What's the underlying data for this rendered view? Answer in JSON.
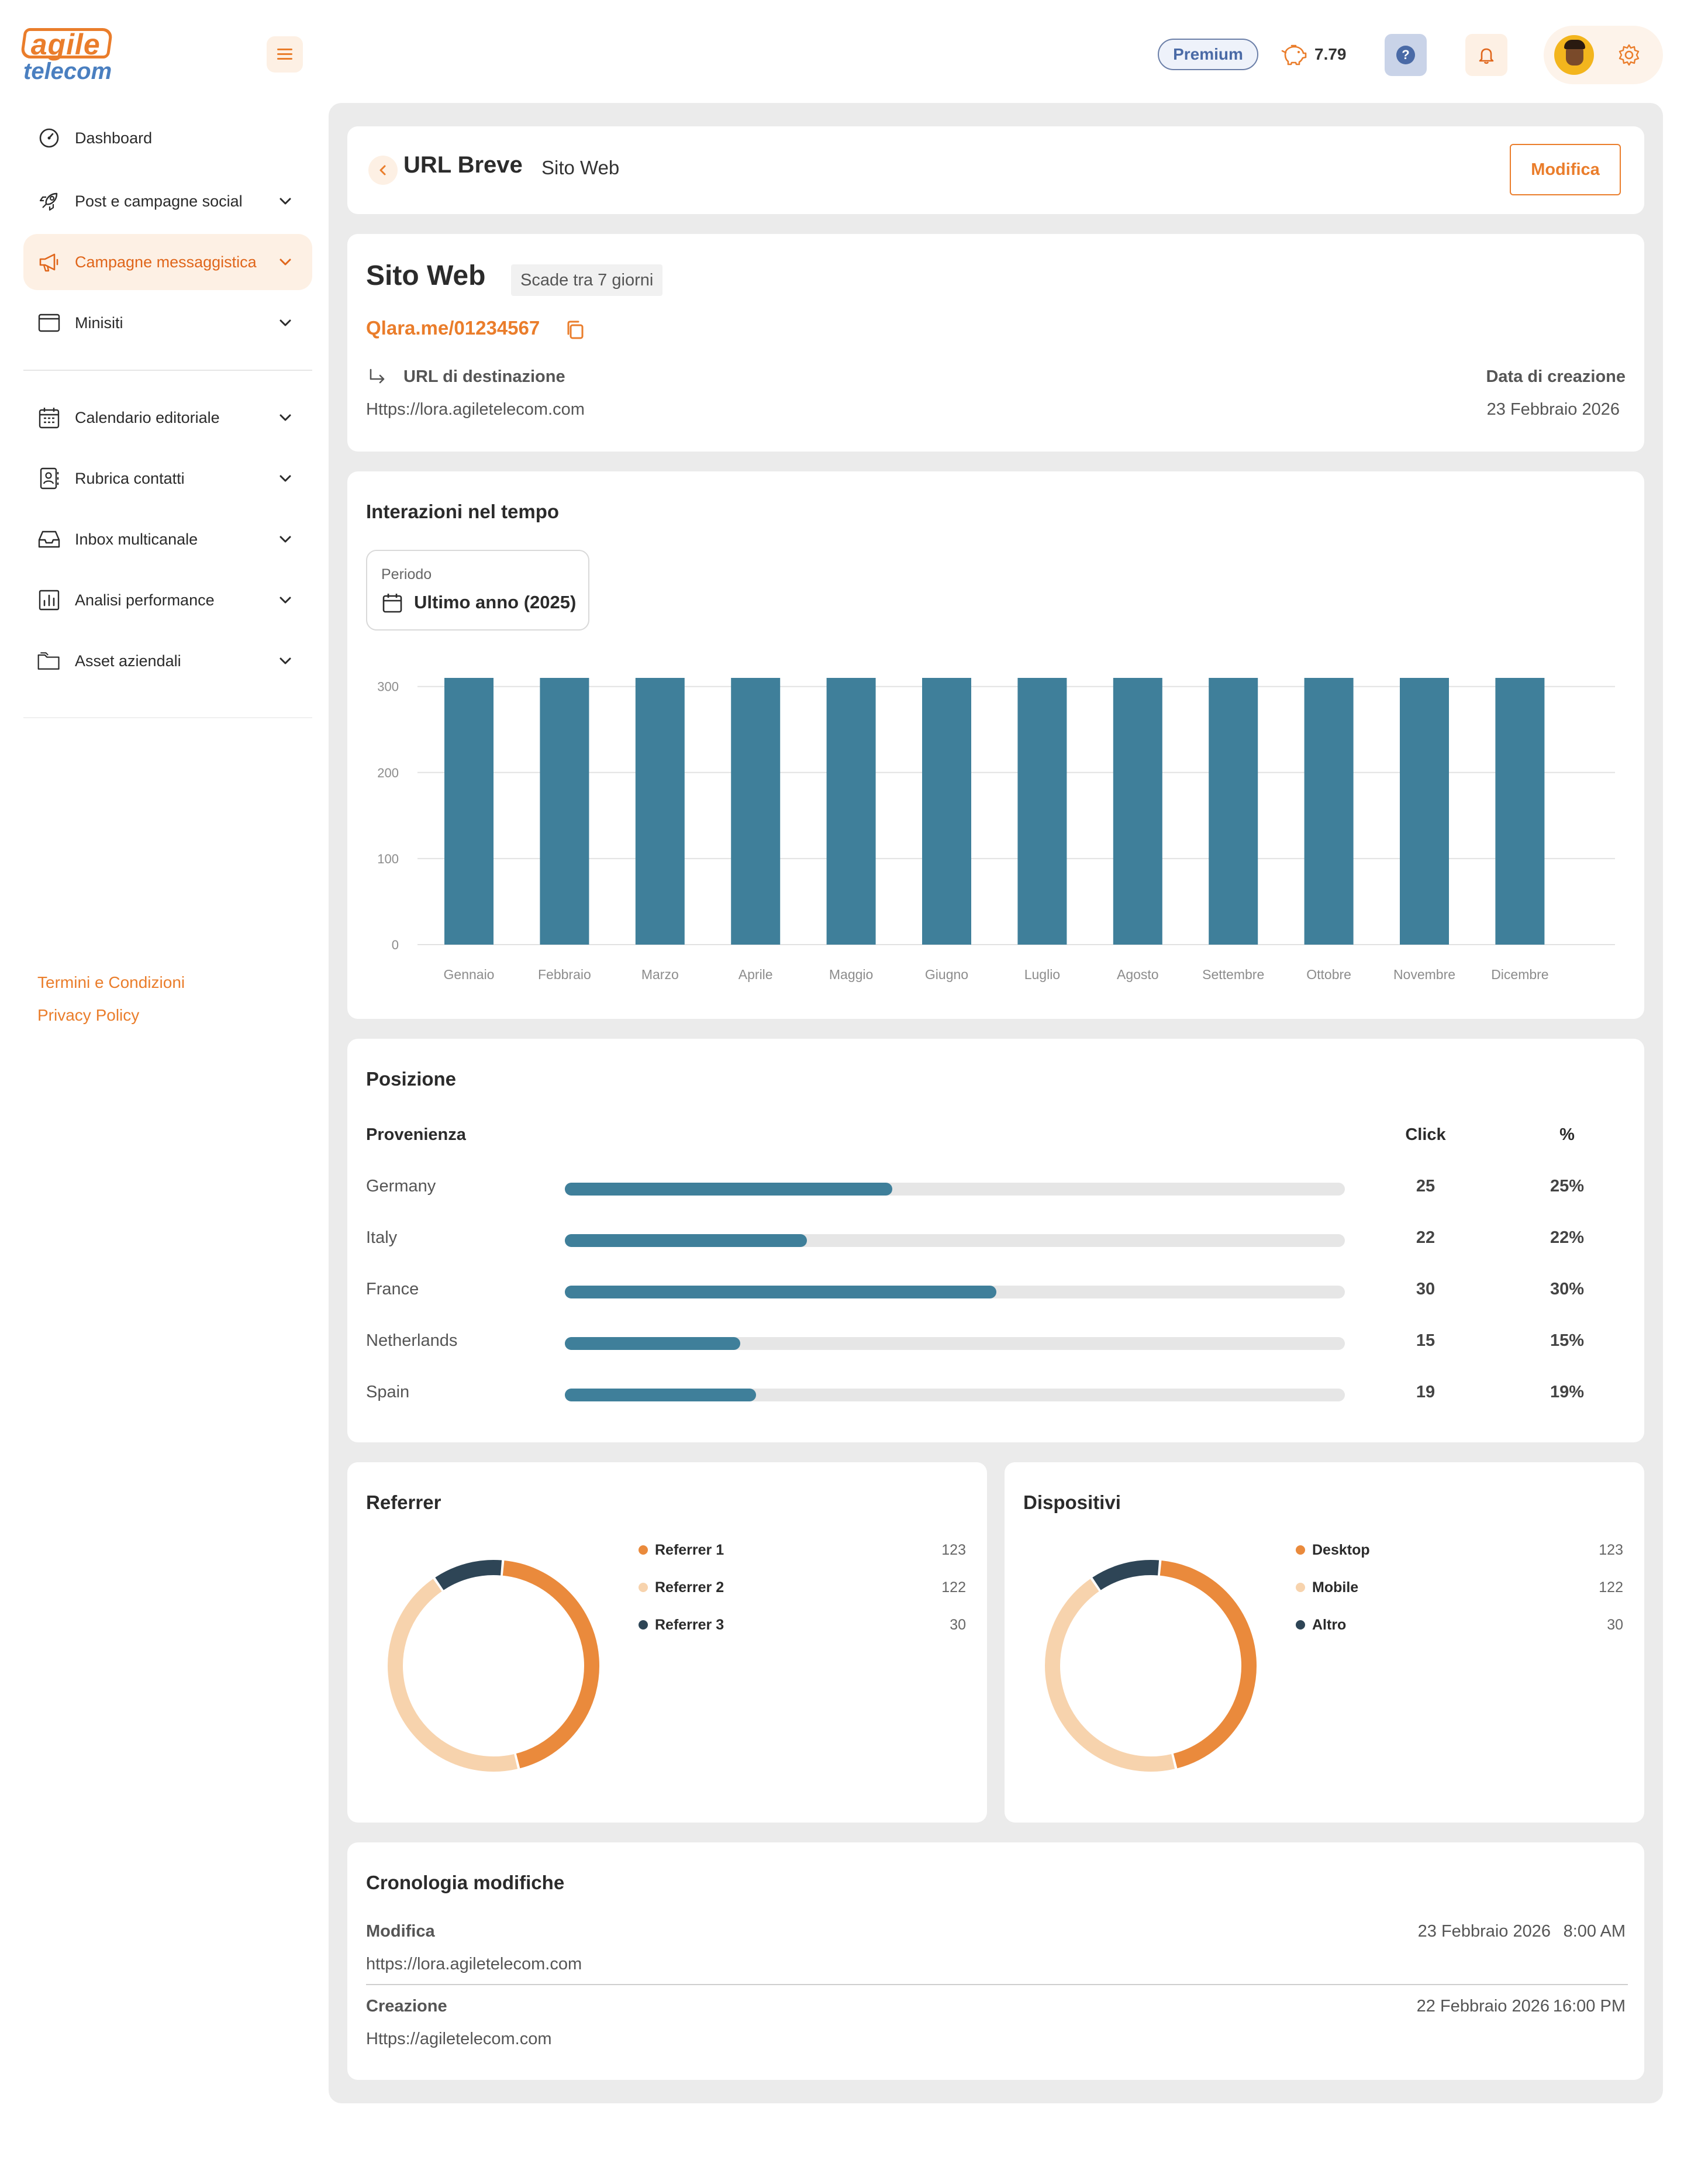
{
  "brand": {
    "logo_top": "agile",
    "logo_bottom": "telecom",
    "accent": "#ea7d2b"
  },
  "sidebar": {
    "items": [
      {
        "label": "Dashboard",
        "icon": "gauge-icon",
        "chevron": false
      },
      {
        "label": "Post e campagne social",
        "icon": "rocket-icon",
        "chevron": true
      },
      {
        "label": "Campagne messaggistica",
        "icon": "megaphone-icon",
        "chevron": true,
        "active": true
      },
      {
        "label": "Minisiti",
        "icon": "browser-window-icon",
        "chevron": true
      },
      {
        "label": "Calendario editoriale",
        "icon": "calendar-icon",
        "chevron": true
      },
      {
        "label": "Rubrica contatti",
        "icon": "contacts-book-icon",
        "chevron": true
      },
      {
        "label": "Inbox multicanale",
        "icon": "inbox-icon",
        "chevron": true
      },
      {
        "label": "Analisi performance",
        "icon": "bar-chart-icon",
        "chevron": true
      },
      {
        "label": "Asset aziendali",
        "icon": "folder-icon",
        "chevron": true
      }
    ],
    "footer_links": [
      "Termini e Condizioni",
      "Privacy Policy"
    ]
  },
  "topbar": {
    "plan": "Premium",
    "credits": "7.79",
    "help_symbol": "?"
  },
  "header": {
    "title": "URL Breve",
    "subtitle": "Sito Web",
    "edit_label": "Modifica"
  },
  "detail": {
    "name": "Sito Web",
    "expiry": "Scade tra 7 giorni",
    "short_url": "Qlara.me/01234567",
    "dest_label": "URL di destinazione",
    "dest_value": "Https://lora.agiletelecom.com",
    "created_label": "Data di creazione",
    "created_value": "23 Febbraio 2026"
  },
  "interactions": {
    "title": "Interazioni nel tempo",
    "period_label": "Periodo",
    "period_value": "Ultimo anno (2025)"
  },
  "chart_data": {
    "type": "bar",
    "categories": [
      "Gennaio",
      "Febbraio",
      "Marzo",
      "Aprile",
      "Maggio",
      "Giugno",
      "Luglio",
      "Agosto",
      "Settembre",
      "Ottobre",
      "Novembre",
      "Dicembre"
    ],
    "values": [
      310,
      310,
      310,
      310,
      310,
      310,
      310,
      310,
      310,
      310,
      310,
      310
    ],
    "yticks": [
      0,
      100,
      200,
      300
    ],
    "ylim": [
      0,
      310
    ],
    "grid": true,
    "color": "#3f7f9a"
  },
  "position": {
    "title": "Posizione",
    "col_origin": "Provenienza",
    "col_click": "Click",
    "col_pct": "%",
    "rows": [
      {
        "country": "Germany",
        "clicks": "25",
        "pct": "25%",
        "fill": 0.42
      },
      {
        "country": "Italy",
        "clicks": "22",
        "pct": "22%",
        "fill": 0.31
      },
      {
        "country": "France",
        "clicks": "30",
        "pct": "30%",
        "fill": 0.553
      },
      {
        "country": "Netherlands",
        "clicks": "15",
        "pct": "15%",
        "fill": 0.225
      },
      {
        "country": "Spain",
        "clicks": "19",
        "pct": "19%",
        "fill": 0.245
      }
    ]
  },
  "referrer": {
    "title": "Referrer",
    "items": [
      {
        "name": "Referrer 1",
        "value": "123",
        "color": "#ea8a3c"
      },
      {
        "name": "Referrer 2",
        "value": "122",
        "color": "#f7d3ad"
      },
      {
        "name": "Referrer 3",
        "value": "30",
        "color": "#2e4556"
      }
    ]
  },
  "devices": {
    "title": "Dispositivi",
    "items": [
      {
        "name": "Desktop",
        "value": "123",
        "color": "#ea8a3c"
      },
      {
        "name": "Mobile",
        "value": "122",
        "color": "#f7d3ad"
      },
      {
        "name": "Altro",
        "value": "30",
        "color": "#2e4556"
      }
    ]
  },
  "history": {
    "title": "Cronologia modifiche",
    "entries": [
      {
        "action": "Modifica",
        "date": "23 Febbraio 2026",
        "time": "8:00 AM",
        "url": "https://lora.agiletelecom.com"
      },
      {
        "action": "Creazione",
        "date": "22 Febbraio 2026",
        "time": "16:00 PM",
        "url": "Https://agiletelecom.com"
      }
    ]
  }
}
